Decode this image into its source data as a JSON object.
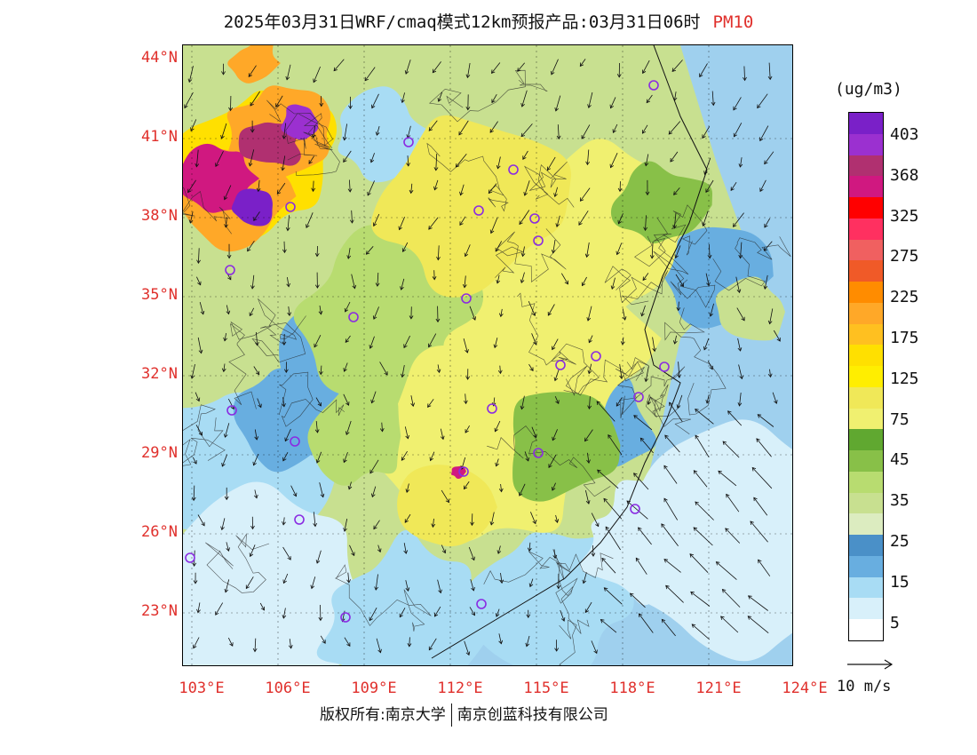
{
  "title": {
    "main": "2025年03月31日WRF/cmaq模式12km预报产品:03月31日06时",
    "variable": "PM10"
  },
  "map": {
    "lat_labels": [
      "44°N",
      "41°N",
      "38°N",
      "35°N",
      "32°N",
      "29°N",
      "26°N",
      "23°N"
    ],
    "lon_labels": [
      "103°E",
      "106°E",
      "109°E",
      "112°E",
      "115°E",
      "118°E",
      "121°E",
      "124°E"
    ],
    "ocean_color": "#9fd0ee",
    "station_marker_color": "#8a2be2"
  },
  "colorbar": {
    "unit": "(ug/m3)",
    "labels": [
      "403",
      "368",
      "325",
      "275",
      "225",
      "175",
      "125",
      "75",
      "45",
      "35",
      "25",
      "15",
      "5"
    ],
    "colors": [
      "#7a20c8",
      "#9b30d0",
      "#b03070",
      "#d01880",
      "#ff0000",
      "#ff3060",
      "#f06060",
      "#f05a28",
      "#ff8c00",
      "#ffa828",
      "#ffc020",
      "#ffe000",
      "#ffee00",
      "#f0e858",
      "#f0f070",
      "#60a830",
      "#88c048",
      "#b8dc70",
      "#c8e090",
      "#dcecc0",
      "#4a90c8",
      "#68aee0",
      "#a8dcf4",
      "#d8f0fa",
      "#ffffff"
    ]
  },
  "wind_reference": {
    "label": "10 m/s"
  },
  "footer": {
    "left": "版权所有:南京大学",
    "right": "南京创蓝科技有限公司"
  }
}
